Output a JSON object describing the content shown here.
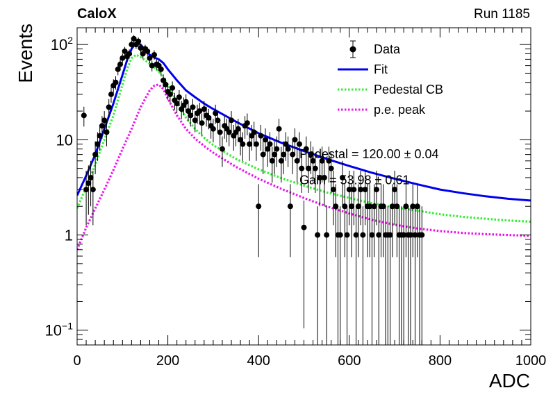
{
  "header": {
    "experiment": "CaloX",
    "run": "Run 1185"
  },
  "chart_data": {
    "type": "scatter",
    "title": "",
    "xlabel": "ADC",
    "ylabel": "Events",
    "xlim": [
      0,
      1000
    ],
    "ylim": [
      0.07,
      150
    ],
    "yscale": "log",
    "grid": false,
    "legend_position": "top-right",
    "x_ticks": [
      {
        "value": 0,
        "label": "0"
      },
      {
        "value": 200,
        "label": "200"
      },
      {
        "value": 400,
        "label": "400"
      },
      {
        "value": 600,
        "label": "600"
      },
      {
        "value": 800,
        "label": "800"
      },
      {
        "value": 1000,
        "label": "1000"
      }
    ],
    "y_ticks": [
      {
        "value": 0.1,
        "label": "10",
        "exp": "−1"
      },
      {
        "value": 1,
        "label": "1",
        "exp": ""
      },
      {
        "value": 10,
        "label": "10",
        "exp": ""
      },
      {
        "value": 100,
        "label": "10",
        "exp": "2"
      }
    ],
    "annotations": [
      {
        "text": "Pedestal = 120.00 ± 0.04",
        "x": 490,
        "y": 6.4
      },
      {
        "text": "Gain = 53.98 ± 0.61",
        "x": 490,
        "y": 3.4
      }
    ],
    "series": [
      {
        "name": "Data",
        "kind": "points",
        "color": "#000000",
        "x": [
          15,
          20,
          25,
          30,
          35,
          40,
          45,
          50,
          55,
          60,
          65,
          70,
          75,
          80,
          85,
          90,
          95,
          100,
          105,
          110,
          115,
          120,
          125,
          130,
          135,
          140,
          145,
          150,
          155,
          160,
          165,
          170,
          175,
          180,
          185,
          190,
          195,
          200,
          205,
          210,
          215,
          220,
          225,
          230,
          235,
          240,
          245,
          250,
          255,
          260,
          265,
          270,
          275,
          280,
          285,
          290,
          295,
          300,
          305,
          310,
          315,
          320,
          325,
          330,
          335,
          340,
          345,
          350,
          355,
          360,
          365,
          370,
          375,
          380,
          385,
          390,
          395,
          400,
          405,
          410,
          415,
          420,
          425,
          430,
          435,
          440,
          445,
          450,
          455,
          460,
          465,
          470,
          475,
          480,
          485,
          490,
          495,
          500,
          505,
          510,
          515,
          520,
          525,
          530,
          535,
          540,
          545,
          550,
          555,
          560,
          565,
          570,
          575,
          580,
          585,
          590,
          595,
          600,
          605,
          610,
          615,
          620,
          625,
          630,
          635,
          640,
          645,
          650,
          655,
          660,
          665,
          670,
          675,
          680,
          685,
          690,
          695,
          700,
          705,
          710,
          715,
          720,
          725,
          730,
          735,
          740,
          745,
          750,
          755,
          760
        ],
        "y": [
          18,
          3,
          3.5,
          4,
          3,
          7,
          9,
          11,
          14,
          16,
          12,
          22,
          30,
          37,
          40,
          55,
          62,
          72,
          85,
          75,
          80,
          100,
          115,
          100,
          108,
          92,
          80,
          90,
          85,
          72,
          60,
          78,
          62,
          60,
          55,
          42,
          38,
          32,
          30,
          35,
          26,
          24,
          28,
          21,
          23,
          25,
          20,
          18,
          22,
          16,
          19,
          20,
          15,
          21,
          18,
          17,
          14,
          13,
          19,
          16,
          12,
          8,
          14,
          13,
          12,
          16,
          11,
          12,
          13,
          10,
          9,
          14,
          15,
          9,
          11,
          12,
          9,
          2,
          11,
          7,
          10,
          8,
          9,
          6,
          7,
          8,
          13,
          6,
          7,
          9,
          8,
          2,
          7,
          10,
          6,
          9,
          5,
          1.2,
          8,
          5,
          7,
          6,
          5,
          1,
          4,
          6,
          4,
          1,
          6,
          5,
          3,
          2,
          1,
          1,
          4,
          2,
          1,
          3,
          2,
          3,
          1,
          2,
          3,
          1,
          3,
          2,
          2,
          1,
          2,
          3,
          1,
          2,
          2,
          1,
          1,
          1,
          2,
          3,
          2,
          1,
          1,
          1,
          2,
          1,
          1,
          2,
          1,
          2,
          1,
          1
        ]
      },
      {
        "name": "Fit",
        "kind": "line",
        "color": "#0000ee",
        "x": [
          0,
          20,
          40,
          60,
          80,
          100,
          110,
          120,
          130,
          140,
          150,
          160,
          170,
          180,
          190,
          200,
          220,
          240,
          260,
          280,
          300,
          350,
          400,
          450,
          500,
          550,
          600,
          650,
          700,
          750,
          800,
          850,
          900,
          950,
          1000
        ],
        "y": [
          2.6,
          4.2,
          7,
          13,
          24,
          48,
          68,
          90,
          104,
          100,
          88,
          78,
          73,
          70,
          64,
          55,
          42,
          33,
          28,
          24,
          21,
          15.5,
          11.7,
          9.3,
          7.6,
          6.3,
          5.3,
          4.5,
          3.9,
          3.4,
          3.0,
          2.75,
          2.55,
          2.4,
          2.3
        ]
      },
      {
        "name": "Pedestal CB",
        "kind": "dotted",
        "color": "#33ee33",
        "x": [
          0,
          20,
          40,
          60,
          80,
          100,
          110,
          120,
          130,
          140,
          150,
          160,
          170,
          180,
          200,
          220,
          240,
          260,
          280,
          300,
          350,
          400,
          450,
          500,
          550,
          600,
          650,
          700,
          750,
          800,
          850,
          900,
          950,
          1000
        ],
        "y": [
          1.9,
          3.2,
          5.5,
          10,
          18,
          38,
          55,
          72,
          78,
          74,
          68,
          63,
          58,
          52,
          38,
          25,
          17,
          13,
          10.5,
          8.8,
          6.3,
          4.9,
          3.95,
          3.3,
          2.8,
          2.45,
          2.15,
          1.95,
          1.8,
          1.65,
          1.55,
          1.48,
          1.42,
          1.38
        ]
      },
      {
        "name": "p.e. peak",
        "kind": "dotted",
        "color": "#ee11ee",
        "x": [
          0,
          20,
          40,
          60,
          80,
          100,
          120,
          140,
          160,
          170,
          180,
          190,
          200,
          220,
          240,
          260,
          280,
          300,
          350,
          400,
          450,
          500,
          550,
          600,
          650,
          700,
          750,
          800,
          850,
          900,
          950,
          1000
        ],
        "y": [
          0.7,
          1.2,
          1.9,
          3,
          4.8,
          8,
          13,
          22,
          33,
          37,
          38,
          34,
          27,
          18,
          13,
          10.3,
          8.6,
          7.3,
          5.2,
          3.9,
          3.05,
          2.45,
          2.0,
          1.68,
          1.44,
          1.28,
          1.17,
          1.1,
          1.05,
          1.02,
          1.0,
          0.98
        ]
      }
    ]
  }
}
